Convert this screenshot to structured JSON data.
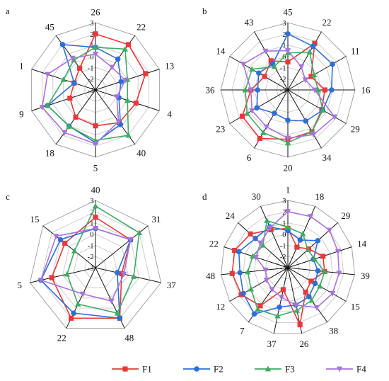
{
  "chart_data": [
    {
      "type": "radar",
      "panel_label": "a",
      "categories": [
        "26",
        "22",
        "13",
        "4",
        "40",
        "5",
        "18",
        "9",
        "1",
        "45"
      ],
      "rlim": [
        -3,
        3
      ],
      "tick_labels": [
        "3",
        "2",
        "1",
        "0",
        "-1",
        "-2",
        "-3"
      ],
      "series": [
        {
          "name": "F1",
          "values": [
            2.0,
            2.0,
            1.7,
            0.8,
            0.6,
            0.2,
            0.0,
            -0.6,
            -1.0,
            -0.6
          ]
        },
        {
          "name": "F2",
          "values": [
            0.8,
            0.4,
            -0.6,
            -0.8,
            0.8,
            1.7,
            1.0,
            1.5,
            -1.0,
            2.0
          ]
        },
        {
          "name": "F3",
          "values": [
            0.8,
            1.5,
            0.0,
            0.0,
            2.0,
            1.5,
            1.0,
            1.5,
            0.0,
            0.3
          ]
        },
        {
          "name": "F4",
          "values": [
            0.2,
            -0.5,
            -0.2,
            -1.0,
            0.5,
            1.8,
            1.7,
            2.0,
            1.5,
            0.5
          ]
        }
      ]
    },
    {
      "type": "radar",
      "panel_label": "b",
      "categories": [
        "45",
        "22",
        "11",
        "16",
        "29",
        "34",
        "20",
        "6",
        "23",
        "36",
        "14",
        "43"
      ],
      "rlim": [
        -3,
        3
      ],
      "tick_labels": [
        "3",
        "2",
        "1",
        "0",
        "-1",
        "-2",
        "-3"
      ],
      "series": [
        {
          "name": "F1",
          "values": [
            -0.5,
            1.8,
            -0.6,
            0.3,
            0.5,
            1.3,
            1.4,
            2.0,
            1.7,
            0.3,
            -0.6,
            0.0
          ]
        },
        {
          "name": "F2",
          "values": [
            2.0,
            1.5,
            1.6,
            0.9,
            0.6,
            0.2,
            -0.3,
            -0.6,
            0.2,
            -0.3,
            0.0,
            -0.3
          ]
        },
        {
          "name": "F3",
          "values": [
            0.3,
            0.9,
            -0.3,
            -0.3,
            0.6,
            1.3,
            1.7,
            1.4,
            1.2,
            0.8,
            0.7,
            -0.6
          ]
        },
        {
          "name": "F4",
          "values": [
            0.5,
            -0.6,
            -1.2,
            -0.6,
            1.8,
            1.6,
            1.3,
            0.8,
            0.7,
            0.3,
            1.6,
            1.0
          ]
        }
      ]
    },
    {
      "type": "radar",
      "panel_label": "c",
      "categories": [
        "40",
        "31",
        "37",
        "48",
        "22",
        "5",
        "15"
      ],
      "rlim": [
        -3,
        3
      ],
      "tick_labels": [
        "3",
        "2",
        "1",
        "0",
        "-1",
        "-2",
        "-3"
      ],
      "series": [
        {
          "name": "F1",
          "values": [
            1.5,
            1.0,
            -0.6,
            2.0,
            2.0,
            1.0,
            0.5
          ]
        },
        {
          "name": "F2",
          "values": [
            0.5,
            1.0,
            -1.0,
            2.0,
            1.5,
            2.0,
            1.0
          ]
        },
        {
          "name": "F3",
          "values": [
            2.5,
            2.0,
            0.5,
            1.5,
            0.6,
            -0.4,
            -0.6
          ]
        },
        {
          "name": "F4",
          "values": [
            0.5,
            1.0,
            -0.4,
            0.3,
            -0.4,
            2.0,
            1.5
          ]
        }
      ]
    },
    {
      "type": "radar",
      "panel_label": "d",
      "categories": [
        "1",
        "18",
        "29",
        "14",
        "39",
        "15",
        "38",
        "26",
        "37",
        "7",
        "12",
        "48",
        "22",
        "24",
        "30"
      ],
      "rlim": [
        -3,
        3
      ],
      "tick_labels": [
        "3",
        "2",
        "1",
        "0",
        "-1",
        "-2",
        "-3"
      ],
      "series": [
        {
          "name": "F1",
          "values": [
            0.5,
            -1.0,
            -0.5,
            0.3,
            0.3,
            -0.6,
            -0.3,
            2.2,
            -1.0,
            1.2,
            1.8,
            2.0,
            2.0,
            1.5,
            0.7
          ]
        },
        {
          "name": "F2",
          "values": [
            0.3,
            -0.3,
            0.6,
            -0.6,
            -0.3,
            -0.2,
            0.2,
            0.4,
            0.6,
            2.1,
            1.6,
            1.3,
            1.6,
            0.9,
            1.0
          ]
        },
        {
          "name": "F3",
          "values": [
            0.6,
            0.3,
            -0.6,
            -0.5,
            0.3,
            0.3,
            0.6,
            0.9,
            1.4,
            1.6,
            0.8,
            0.6,
            0.3,
            0.0,
            1.6
          ]
        },
        {
          "name": "F4",
          "values": [
            2.0,
            2.0,
            2.0,
            1.7,
            1.6,
            1.6,
            1.4,
            0.4,
            -0.3,
            -0.6,
            -0.8,
            -1.0,
            0.0,
            0.3,
            0.9
          ]
        }
      ]
    }
  ],
  "legend": {
    "placement": "bottom",
    "items": [
      {
        "name": "F1",
        "color": "#e8393a",
        "marker": "square"
      },
      {
        "name": "F2",
        "color": "#2e6fd6",
        "marker": "circle"
      },
      {
        "name": "F3",
        "color": "#3faa63",
        "marker": "triangle-up"
      },
      {
        "name": "F4",
        "color": "#a873dc",
        "marker": "triangle-down"
      }
    ]
  }
}
